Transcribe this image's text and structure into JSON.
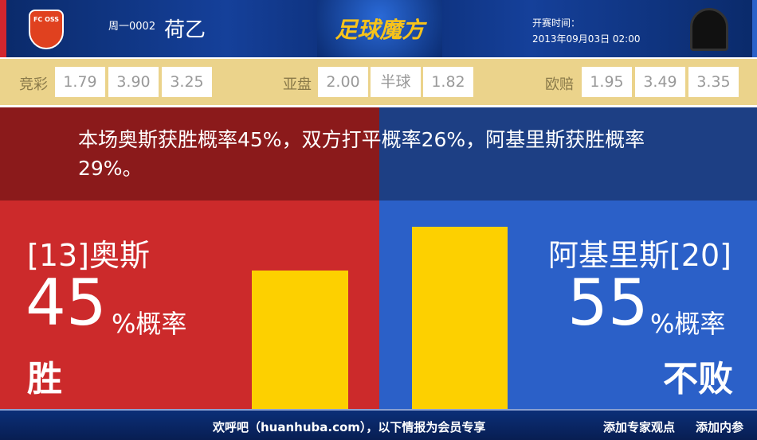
{
  "header": {
    "home_logo_text": "FC OSS",
    "match_no": "周一0002",
    "league": "荷乙",
    "brand": "足球魔方",
    "time_label": "开赛时间：",
    "time_value": "2013年09月03日 02:00"
  },
  "odds": {
    "jingcai": {
      "label": "竞彩",
      "values": [
        "1.79",
        "3.90",
        "3.25"
      ]
    },
    "yapan": {
      "label": "亚盘",
      "values": [
        "2.00",
        "半球",
        "1.82"
      ]
    },
    "oupei": {
      "label": "欧赔",
      "values": [
        "1.95",
        "3.49",
        "3.35"
      ]
    }
  },
  "message": "本场奥斯获胜概率45%，双方打平概率26%，阿基里斯获胜概率29%。",
  "home": {
    "team": "[13]奥斯",
    "percent": "45",
    "unit": "%概率",
    "result": "胜",
    "bar_percent": 45,
    "color": "#cc2a2b"
  },
  "away": {
    "team": "阿基里斯[20]",
    "percent": "55",
    "unit": "%概率",
    "result": "不败",
    "bar_percent": 55,
    "color": "#2b60c8"
  },
  "bar_color": "#fdd000",
  "footer": {
    "welcome": "欢呼吧（huanhuba.com），以下情报为会员专享",
    "add_expert": "添加专家观点",
    "add_content": "添加内参"
  }
}
